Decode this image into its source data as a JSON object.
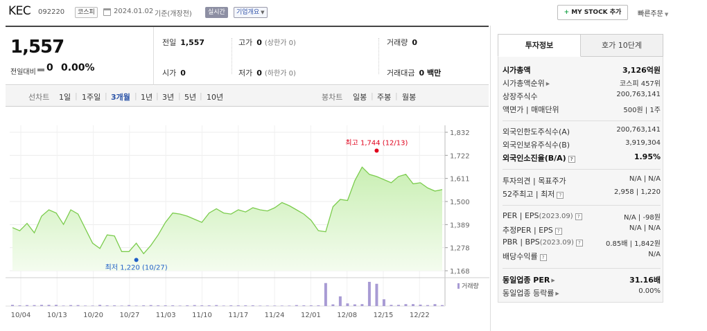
{
  "header": {
    "name": "KEC",
    "code": "092220",
    "market": "코스피",
    "date": "2024.01.02",
    "basis": "기준(개장전)",
    "realtime": "실시간",
    "corp_info": "기업개요",
    "my_stock": "MY STOCK 추가",
    "quick_order": "빠른주문"
  },
  "summary": {
    "price": "1,557",
    "change_label": "전일대비",
    "change_value": "0",
    "change_pct": "0.00%",
    "prev_label": "전일",
    "prev_value": "1,557",
    "high_label": "고가",
    "high_value": "0",
    "high_sub": "(상한가 0)",
    "volume_label": "거래량",
    "volume_value": "0",
    "open_label": "시가",
    "open_value": "0",
    "low_label": "저가",
    "low_value": "0",
    "low_sub": "(하한가 0)",
    "amount_label": "거래대금",
    "amount_value": "0 백만"
  },
  "tabs": {
    "line_label": "선차트",
    "line": [
      "1일",
      "1주일",
      "3개월",
      "1년",
      "3년",
      "5년",
      "10년"
    ],
    "active": "3개월",
    "candle_label": "봉차트",
    "candle": [
      "일봉",
      "주봉",
      "월봉"
    ]
  },
  "chart_data": {
    "type": "area",
    "y_ticks": [
      "1,832",
      "1,722",
      "1,611",
      "1,500",
      "1,389",
      "1,278",
      "1,168"
    ],
    "ylim": [
      1168,
      1832
    ],
    "x_ticks": [
      "10/04",
      "10/13",
      "10/20",
      "10/27",
      "11/03",
      "11/10",
      "11/17",
      "11/24",
      "12/01",
      "12/08",
      "12/15",
      "12/22"
    ],
    "values": [
      1375,
      1360,
      1395,
      1350,
      1430,
      1460,
      1445,
      1390,
      1460,
      1440,
      1370,
      1300,
      1275,
      1340,
      1335,
      1260,
      1260,
      1300,
      1250,
      1290,
      1340,
      1400,
      1445,
      1440,
      1430,
      1415,
      1400,
      1445,
      1465,
      1445,
      1440,
      1460,
      1450,
      1470,
      1460,
      1455,
      1470,
      1495,
      1480,
      1460,
      1440,
      1410,
      1360,
      1355,
      1475,
      1510,
      1505,
      1600,
      1665,
      1630,
      1620,
      1605,
      1590,
      1620,
      1630,
      1585,
      1590,
      1565,
      1550,
      1557
    ],
    "volumes": [
      5,
      3,
      4,
      4,
      5,
      5,
      5,
      2,
      4,
      4,
      2,
      2,
      5,
      3,
      3,
      2,
      4,
      2,
      3,
      4,
      3,
      3,
      3,
      2,
      3,
      4,
      3,
      3,
      4,
      2,
      3,
      3,
      3,
      3,
      2,
      2,
      2,
      2,
      2,
      4,
      3,
      3,
      3,
      3,
      7,
      9,
      11,
      7,
      8,
      8,
      6,
      5,
      5,
      5,
      5,
      8,
      6,
      4,
      3,
      4
    ],
    "volume_max": 100,
    "volume_overrides": [
      [
        43,
        95
      ],
      [
        45,
        40
      ],
      [
        49,
        100
      ],
      [
        50,
        92
      ],
      [
        51,
        28
      ],
      [
        54,
        8
      ],
      [
        58,
        8
      ]
    ],
    "high": {
      "label": "최고 1,744 (12/13)",
      "value": 1744,
      "index": 50
    },
    "low": {
      "label": "최저 1,220 (10/27)",
      "value": 1220,
      "index": 17
    },
    "volume_legend": "거래량",
    "colors": {
      "line": "#7bcc4d",
      "fill_top": "#c9efb3",
      "fill_bottom": "#f4fcef",
      "volume": "#a89bd4",
      "high": "#e0001b",
      "low": "#1e5fc6"
    }
  },
  "info": {
    "tab_active": "투자정보",
    "tab_other": "호가 10단계",
    "rows": {
      "mcap_k": "시가총액",
      "mcap_v": "3,126억원",
      "rank_k": "시가총액순위",
      "rank_v": "코스피 457위",
      "shares_k": "상장주식수",
      "shares_v": "200,763,141",
      "par_k": "액면가",
      "par_k2": "매매단위",
      "par_v": "500원",
      "par_v2": "1주",
      "forlimit_k": "외국인한도주식수(A)",
      "forlimit_v": "200,763,141",
      "forhold_k": "외국인보유주식수(B)",
      "forhold_v": "3,919,304",
      "forratio_k": "외국인소진율(B/A)",
      "forratio_v": "1.95%",
      "opinion_k": "투자의견",
      "opinion_k2": "목표주가",
      "opinion_v": "N/A",
      "opinion_v2": "N/A",
      "w52_k": "52주최고",
      "w52_k2": "최저",
      "w52_v": "2,958",
      "w52_v2": "1,220",
      "per_k": "PER",
      "per_k2": "EPS",
      "per_s": "(2023.09)",
      "per_v": "N/A",
      "per_v2": "-98원",
      "eper_k": "추정PER",
      "eper_k2": "EPS",
      "eper_v": "N/A",
      "eper_v2": "N/A",
      "pbr_k": "PBR",
      "pbr_k2": "BPS",
      "pbr_s": "(2023.09)",
      "pbr_v": "0.85배",
      "pbr_v2": "1,842원",
      "div_k": "배당수익률",
      "div_v": "N/A",
      "sper_k": "동일업종 PER",
      "sper_v": "31.16배",
      "srate_k": "동일업종 등락률",
      "srate_v": "0.00%"
    }
  }
}
